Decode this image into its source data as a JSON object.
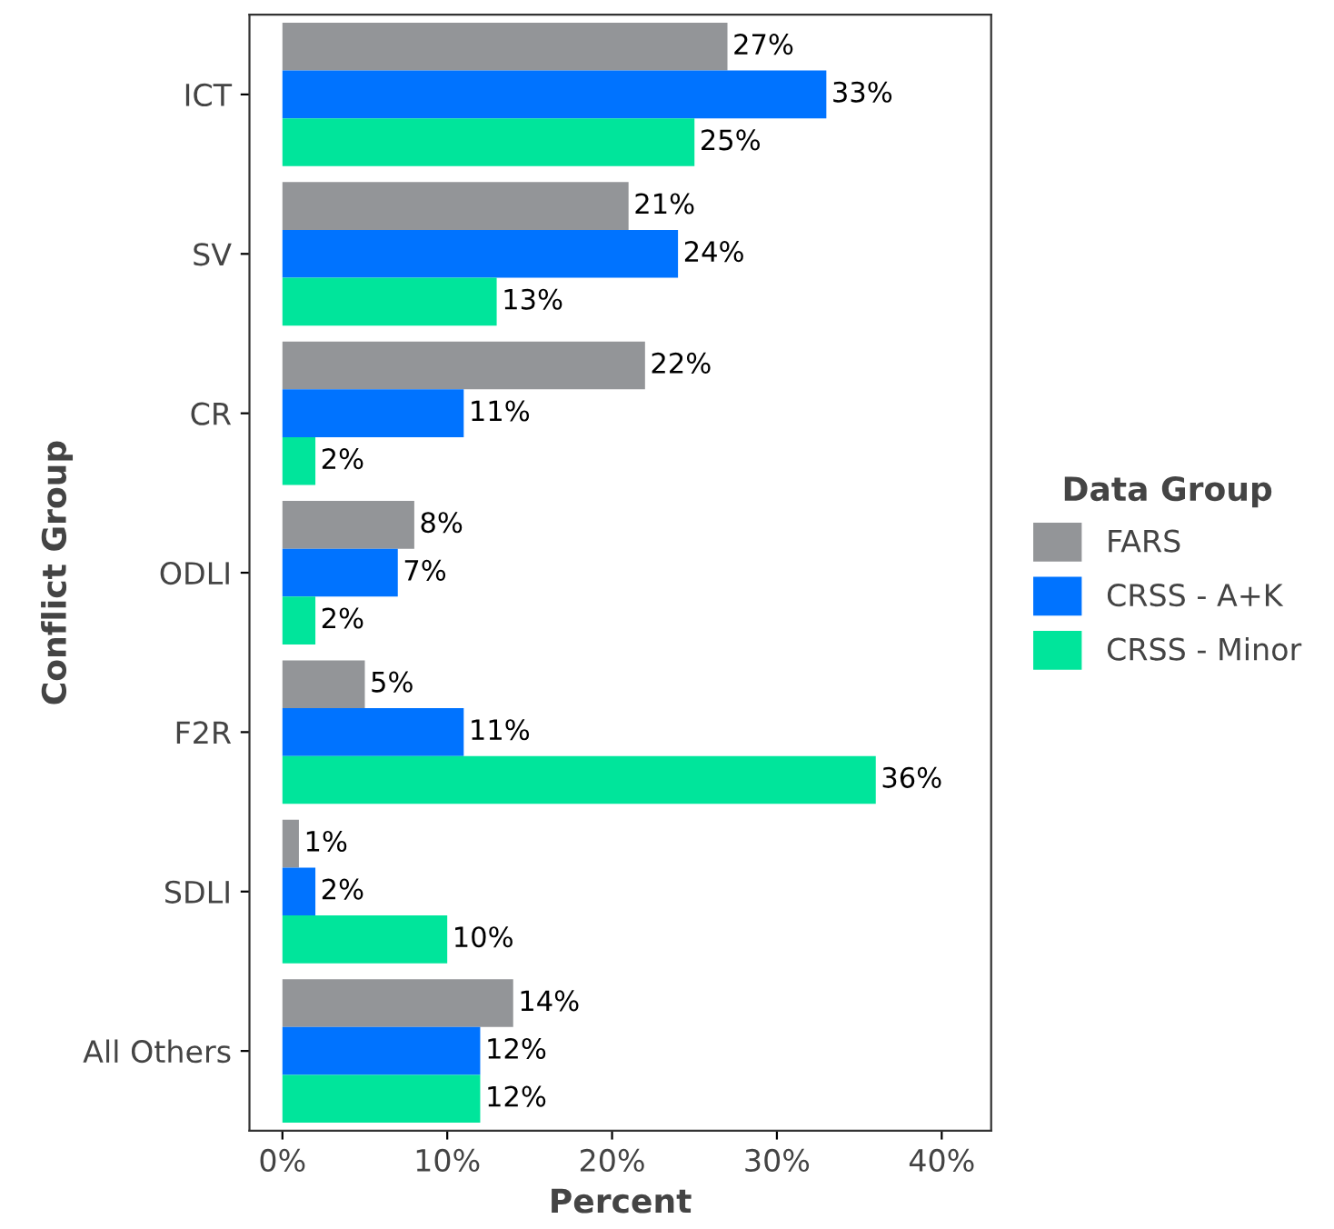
{
  "chart_data": {
    "type": "bar",
    "orientation": "horizontal",
    "xlabel": "Percent",
    "ylabel": "Conflict Group",
    "legend_title": "Data Group",
    "categories": [
      "ICT",
      "SV",
      "CR",
      "ODLI",
      "F2R",
      "SDLI",
      "All Others"
    ],
    "series": [
      {
        "name": "FARS",
        "color": "#939598",
        "values": [
          27,
          21,
          22,
          8,
          5,
          1,
          14
        ],
        "value_labels": [
          "27%",
          "21%",
          "22%",
          "8%",
          "5%",
          "1%",
          "14%"
        ]
      },
      {
        "name": "CRSS - A+K",
        "color": "#0073ff",
        "values": [
          33,
          24,
          11,
          7,
          11,
          2,
          12
        ],
        "value_labels": [
          "33%",
          "24%",
          "11%",
          "7%",
          "11%",
          "2%",
          "12%"
        ]
      },
      {
        "name": "CRSS - Minor",
        "color": "#00e59b",
        "values": [
          25,
          13,
          2,
          2,
          36,
          10,
          12
        ],
        "value_labels": [
          "25%",
          "13%",
          "2%",
          "2%",
          "36%",
          "10%",
          "12%"
        ]
      }
    ],
    "xlim": [
      -2,
      43
    ],
    "xticks": [
      {
        "value": 0,
        "label": "0%"
      },
      {
        "value": 10,
        "label": "10%"
      },
      {
        "value": 20,
        "label": "20%"
      },
      {
        "value": 30,
        "label": "30%"
      },
      {
        "value": 40,
        "label": "40%"
      }
    ],
    "legend": "right",
    "grid": false
  }
}
